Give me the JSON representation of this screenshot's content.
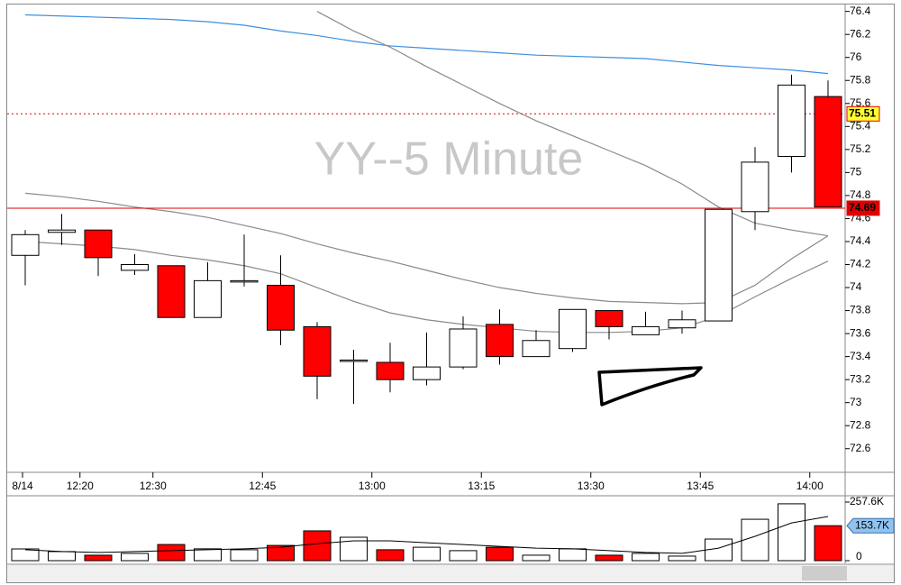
{
  "chart_data": {
    "type": "candlestick",
    "title": "YY--5 Minute",
    "categories": [
      "8/14",
      null,
      "12:20",
      null,
      "12:30",
      null,
      null,
      "12:45",
      null,
      null,
      "13:00",
      null,
      null,
      "13:15",
      null,
      null,
      "13:30",
      null,
      null,
      "13:45",
      null,
      null,
      "14:00"
    ],
    "open": [
      74.28,
      74.48,
      74.5,
      74.15,
      74.19,
      73.74,
      74.05,
      74.02,
      73.66,
      73.36,
      73.35,
      73.2,
      73.31,
      73.68,
      73.4,
      73.47,
      73.8,
      73.59,
      73.65,
      73.71,
      74.66,
      75.14,
      75.66
    ],
    "high": [
      74.5,
      74.64,
      74.5,
      74.29,
      74.19,
      74.22,
      74.46,
      74.28,
      73.7,
      73.46,
      73.52,
      73.61,
      73.75,
      73.81,
      73.63,
      73.81,
      73.8,
      73.79,
      73.8,
      74.68,
      75.22,
      75.85,
      75.8
    ],
    "low": [
      74.02,
      74.37,
      74.1,
      74.11,
      73.74,
      73.74,
      74.01,
      73.5,
      73.03,
      72.99,
      73.09,
      73.15,
      73.29,
      73.33,
      73.4,
      73.44,
      73.55,
      73.59,
      73.6,
      73.71,
      74.5,
      75.0,
      74.7
    ],
    "close": [
      74.46,
      74.5,
      74.26,
      74.2,
      73.74,
      74.06,
      74.06,
      73.63,
      73.23,
      73.37,
      73.2,
      73.31,
      73.64,
      73.4,
      73.54,
      73.81,
      73.66,
      73.66,
      73.72,
      74.68,
      75.09,
      75.76,
      74.7
    ],
    "up_color": "#ffffff",
    "down_color": "#ff0000",
    "overlays": [
      {
        "color": "#3d8fe0",
        "values": [
          76.37,
          76.36,
          76.35,
          76.34,
          76.33,
          76.31,
          76.28,
          76.23,
          76.19,
          76.14,
          76.1,
          76.08,
          76.06,
          76.04,
          76.02,
          76.01,
          76.0,
          75.99,
          75.96,
          75.93,
          75.91,
          75.89,
          75.86
        ]
      },
      {
        "color": "#8a8a8a",
        "values": [
          74.82,
          74.79,
          74.75,
          74.7,
          74.66,
          74.61,
          74.54,
          74.47,
          74.38,
          74.3,
          74.23,
          74.15,
          74.07,
          74.0,
          73.95,
          73.91,
          73.88,
          73.87,
          73.86,
          73.87,
          74.02,
          74.25,
          74.45
        ]
      },
      {
        "color": "#8a8a8a",
        "values": [
          74.4,
          74.38,
          74.36,
          74.33,
          74.28,
          74.24,
          74.19,
          74.12,
          74.0,
          73.88,
          73.78,
          73.72,
          73.68,
          73.65,
          73.62,
          73.61,
          73.61,
          73.62,
          73.65,
          73.75,
          73.92,
          74.08,
          74.23
        ]
      },
      {
        "color": "#8a8a8a",
        "values": [
          null,
          null,
          null,
          null,
          null,
          null,
          null,
          null,
          76.4,
          76.23,
          76.09,
          75.92,
          75.76,
          75.6,
          75.45,
          75.32,
          75.19,
          75.06,
          74.9,
          74.7,
          74.56,
          74.5,
          74.45
        ]
      }
    ],
    "hlines": [
      {
        "value": 75.51,
        "color": "#e00000",
        "style": "dotted",
        "label_bg": "#ffff33",
        "label_color": "#000000"
      },
      {
        "value": 74.69,
        "color": "#e00000",
        "style": "solid",
        "label_bg": "#e00000",
        "label_color": "#ffffff"
      }
    ],
    "ylim": [
      72.41,
      76.46
    ],
    "yticks": [
      76.4,
      76.2,
      76,
      75.8,
      75.6,
      75.4,
      75.2,
      75,
      74.8,
      74.6,
      74.4,
      74.2,
      74,
      73.8,
      73.6,
      73.4,
      73.2,
      73,
      72.8,
      72.6
    ],
    "volume": {
      "values": [
        51.5,
        40,
        24,
        32,
        71,
        52,
        48,
        67,
        131,
        103,
        48,
        59,
        44,
        59,
        24,
        52,
        24,
        32,
        20,
        95,
        182,
        250,
        153.7
      ],
      "value_labels": [
        null,
        null,
        null,
        null,
        null,
        null,
        null,
        null,
        null,
        null,
        null,
        null,
        null,
        null,
        null,
        null,
        null,
        null,
        null,
        null,
        null,
        null,
        "153.7K"
      ],
      "ma": [
        48,
        40,
        36,
        40,
        44,
        48,
        52,
        59,
        75,
        87,
        87,
        79,
        71,
        63,
        55,
        52,
        44,
        36,
        32,
        55,
        107,
        166,
        194
      ],
      "ma_color": "#000000",
      "ylim": [
        0,
        257.6
      ],
      "yticks": [
        {
          "value": 257.6,
          "label": "257.6K"
        },
        0
      ]
    }
  }
}
